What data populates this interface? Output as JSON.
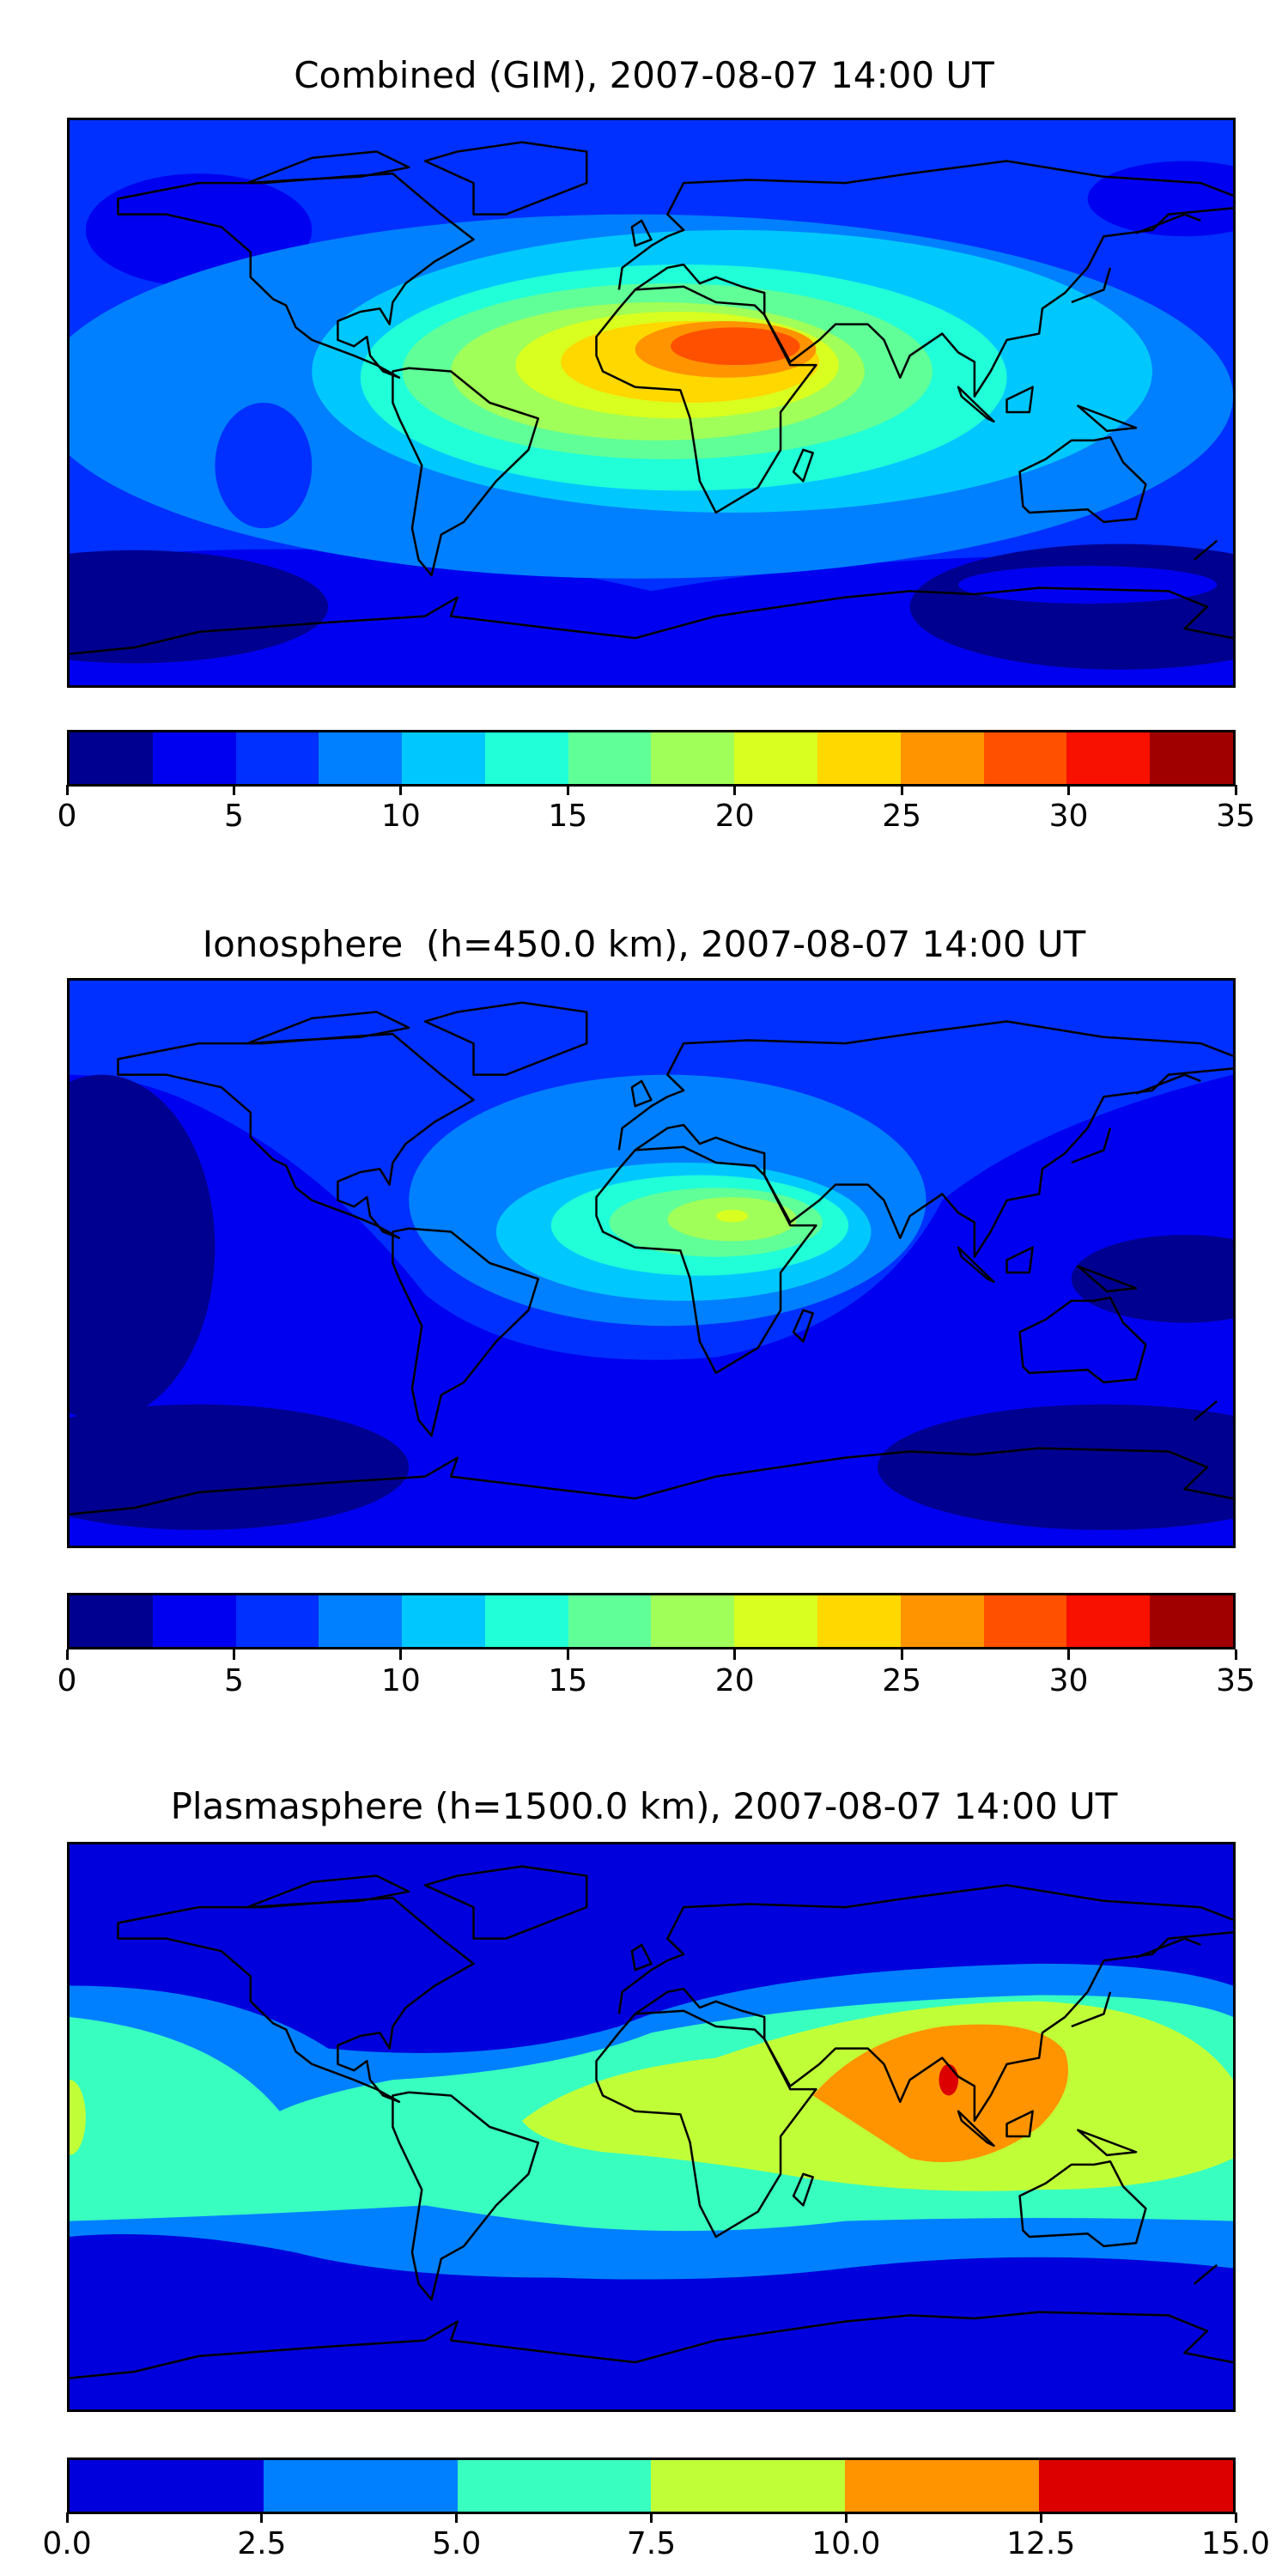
{
  "panels": [
    {
      "title": "Combined (GIM), 2007-08-07 14:00 UT",
      "colorbar": {
        "levels": [
          0,
          2.5,
          5,
          7.5,
          10,
          12.5,
          15,
          17.5,
          20,
          22.5,
          25,
          27.5,
          30,
          32.5,
          35
        ],
        "colors": [
          "#000090",
          "#0000f0",
          "#0030ff",
          "#0080ff",
          "#00c8ff",
          "#20ffd8",
          "#60ff98",
          "#a0ff58",
          "#d8ff20",
          "#ffd800",
          "#ff9400",
          "#ff5000",
          "#f81000",
          "#a00000"
        ],
        "ticks": [
          "0",
          "5",
          "10",
          "15",
          "20",
          "25",
          "30",
          "35"
        ]
      }
    },
    {
      "title": "Ionosphere  (h=450.0 km), 2007-08-07 14:00 UT",
      "colorbar": {
        "levels": [
          0,
          2.5,
          5,
          7.5,
          10,
          12.5,
          15,
          17.5,
          20,
          22.5,
          25,
          27.5,
          30,
          32.5,
          35
        ],
        "colors": [
          "#000090",
          "#0000f0",
          "#0030ff",
          "#0080ff",
          "#00c8ff",
          "#20ffd8",
          "#60ff98",
          "#a0ff58",
          "#d8ff20",
          "#ffd800",
          "#ff9400",
          "#ff5000",
          "#f81000",
          "#a00000"
        ],
        "ticks": [
          "0",
          "5",
          "10",
          "15",
          "20",
          "25",
          "30",
          "35"
        ]
      }
    },
    {
      "title": "Plasmasphere (h=1500.0 km), 2007-08-07 14:00 UT",
      "colorbar": {
        "levels": [
          0,
          2.5,
          5,
          7.5,
          10,
          12.5,
          15
        ],
        "colors": [
          "#0000dc",
          "#0080ff",
          "#38ffc0",
          "#c0ff38",
          "#ff9400",
          "#dc0000"
        ],
        "ticks": [
          "0.0",
          "2.5",
          "5.0",
          "7.5",
          "10.0",
          "12.5",
          "15.0"
        ]
      }
    }
  ]
}
